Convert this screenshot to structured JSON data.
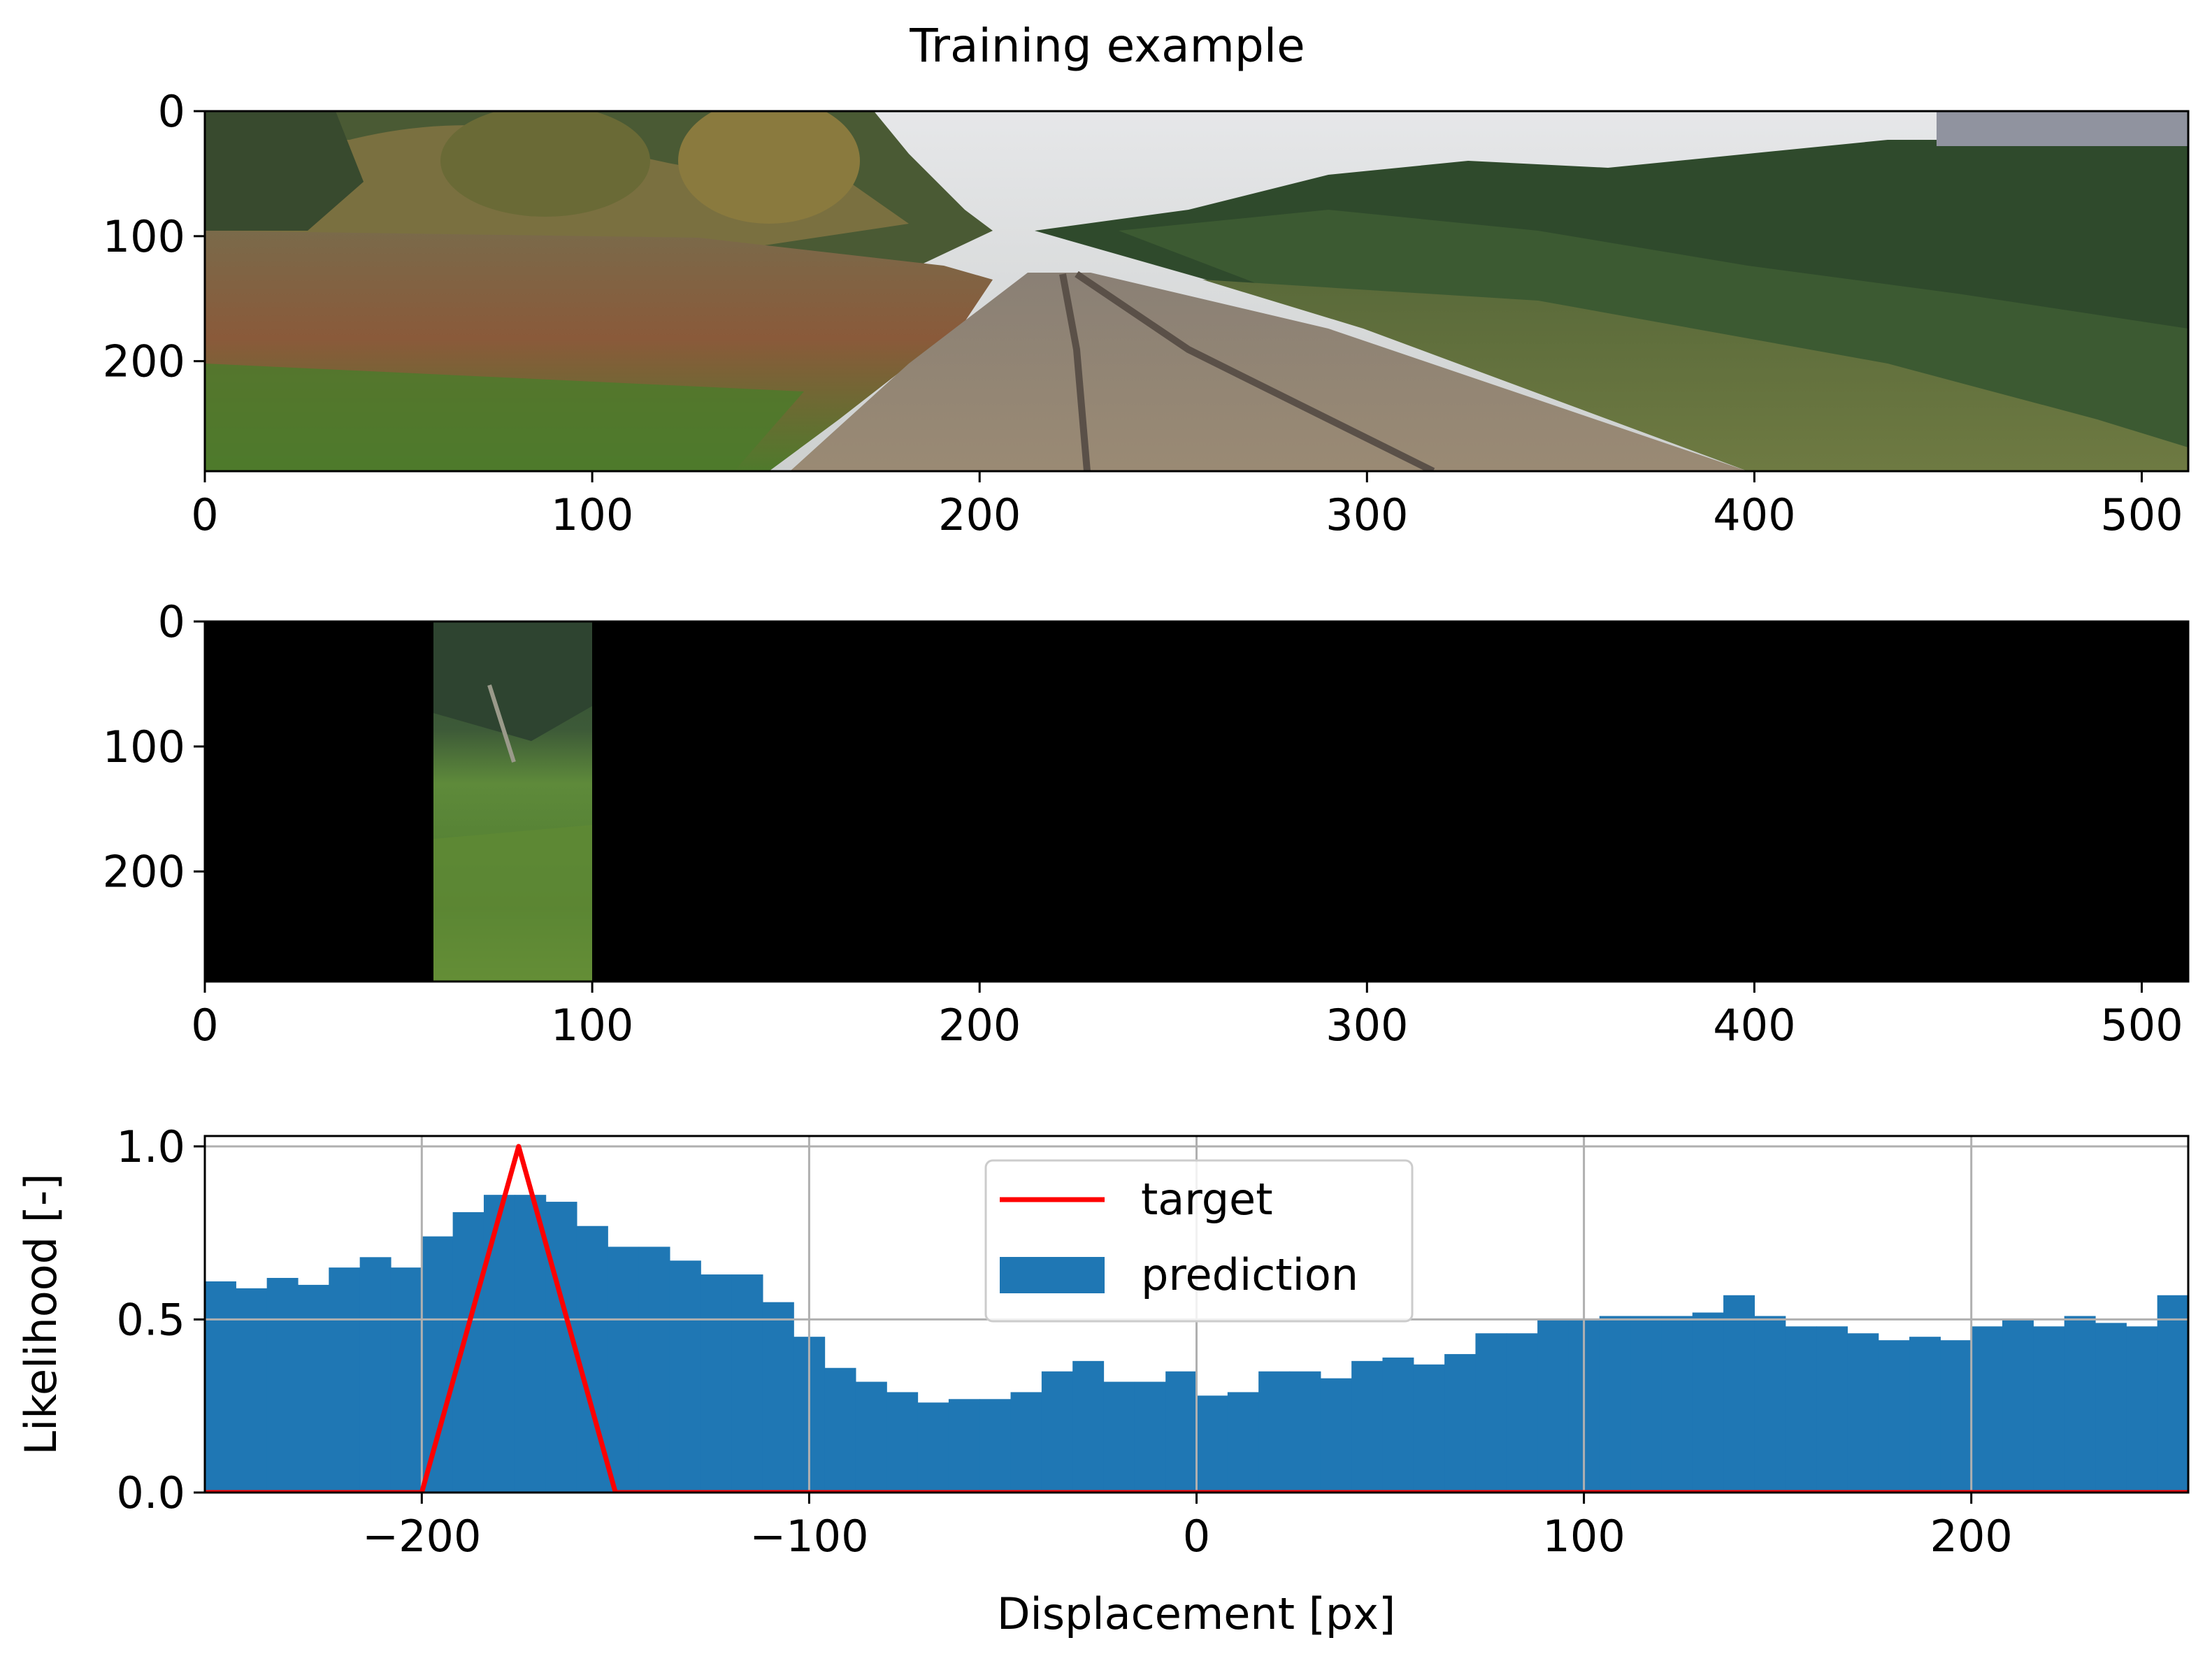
{
  "figure": {
    "title": "Training example"
  },
  "chart_data": [
    {
      "type": "image",
      "xticks": [
        0,
        100,
        200,
        300,
        400,
        500
      ],
      "yticks": [
        0,
        100,
        200
      ],
      "xlim": [
        0,
        512
      ],
      "ylim": [
        288,
        0
      ],
      "content": "railway-forward-camera-view"
    },
    {
      "type": "image",
      "xticks": [
        0,
        100,
        200,
        300,
        400,
        500
      ],
      "yticks": [
        0,
        100,
        200
      ],
      "xlim": [
        0,
        512
      ],
      "ylim": [
        288,
        0
      ],
      "visible_strip_x": [
        59,
        99
      ],
      "content": "masked-black-with-vegetation-strip"
    },
    {
      "type": "bar",
      "xlabel": "Displacement [px]",
      "ylabel": "Likelihood [-]",
      "xlim": [
        -256,
        256
      ],
      "ylim": [
        0,
        1.03
      ],
      "xticks": [
        -200,
        -100,
        0,
        100,
        200
      ],
      "xtick_labels": [
        "−200",
        "−100",
        "0",
        "100",
        "200"
      ],
      "yticks": [
        0,
        0.5,
        1.0
      ],
      "ytick_labels": [
        "0.0",
        "0.5",
        "1.0"
      ],
      "grid": true,
      "legend": {
        "position": "upper-center",
        "entries": [
          "target",
          "prediction"
        ]
      },
      "bin_width": 8,
      "bin_start": -256,
      "prediction": [
        0.61,
        0.59,
        0.62,
        0.6,
        0.65,
        0.68,
        0.65,
        0.74,
        0.81,
        0.86,
        0.86,
        0.84,
        0.77,
        0.71,
        0.71,
        0.67,
        0.63,
        0.63,
        0.55,
        0.45,
        0.36,
        0.32,
        0.29,
        0.26,
        0.27,
        0.27,
        0.29,
        0.35,
        0.38,
        0.32,
        0.32,
        0.35,
        0.28,
        0.29,
        0.35,
        0.35,
        0.33,
        0.38,
        0.39,
        0.37,
        0.4,
        0.46,
        0.46,
        0.5,
        0.5,
        0.51,
        0.51,
        0.51,
        0.52,
        0.57,
        0.51,
        0.48,
        0.48,
        0.46,
        0.44,
        0.45,
        0.44,
        0.48,
        0.5,
        0.48,
        0.51,
        0.49,
        0.48,
        0.57
      ],
      "target": {
        "x": [
          -256,
          -200,
          -175,
          -150,
          256
        ],
        "y": [
          0,
          0,
          1.0,
          0,
          0
        ]
      },
      "colors": {
        "prediction": "#1f77b4",
        "target": "#ff0000",
        "grid": "#b0b0b0"
      }
    }
  ]
}
